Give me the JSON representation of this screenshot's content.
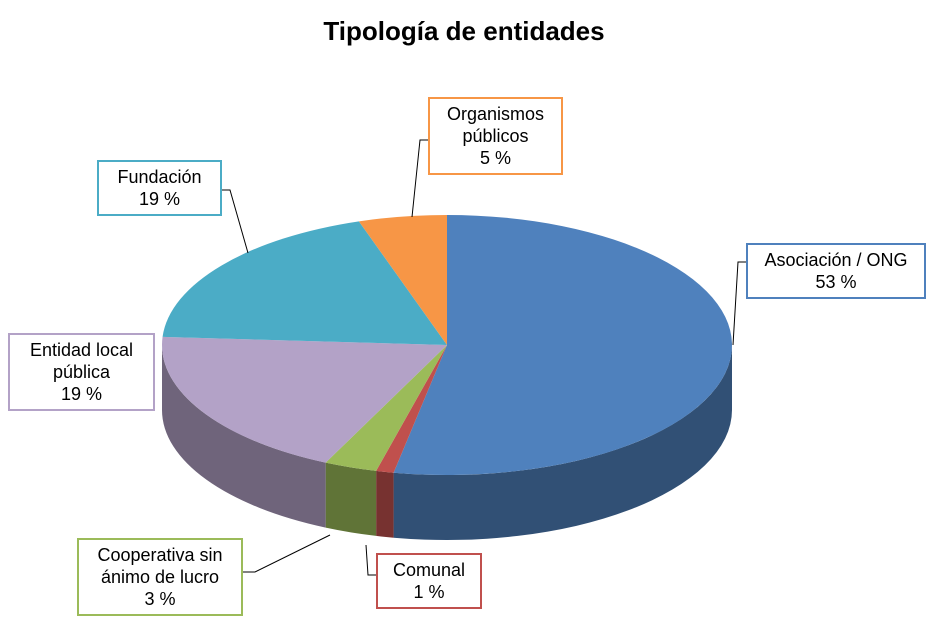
{
  "chart_data": {
    "type": "pie",
    "title": "Tipología de entidades",
    "categories": [
      "Asociación / ONG",
      "Comunal",
      "Cooperativa sin ánimo de lucro",
      "Entidad local pública",
      "Fundación",
      "Organismos públicos"
    ],
    "values": [
      53,
      1,
      3,
      19,
      19,
      5
    ],
    "value_labels": [
      "53 %",
      "1 %",
      "3 %",
      "19 %",
      "19 %",
      "5 %"
    ],
    "colors": [
      "#4f81bd",
      "#c0504d",
      "#9bbb59",
      "#b3a2c7",
      "#4bacc6",
      "#f79646"
    ]
  }
}
